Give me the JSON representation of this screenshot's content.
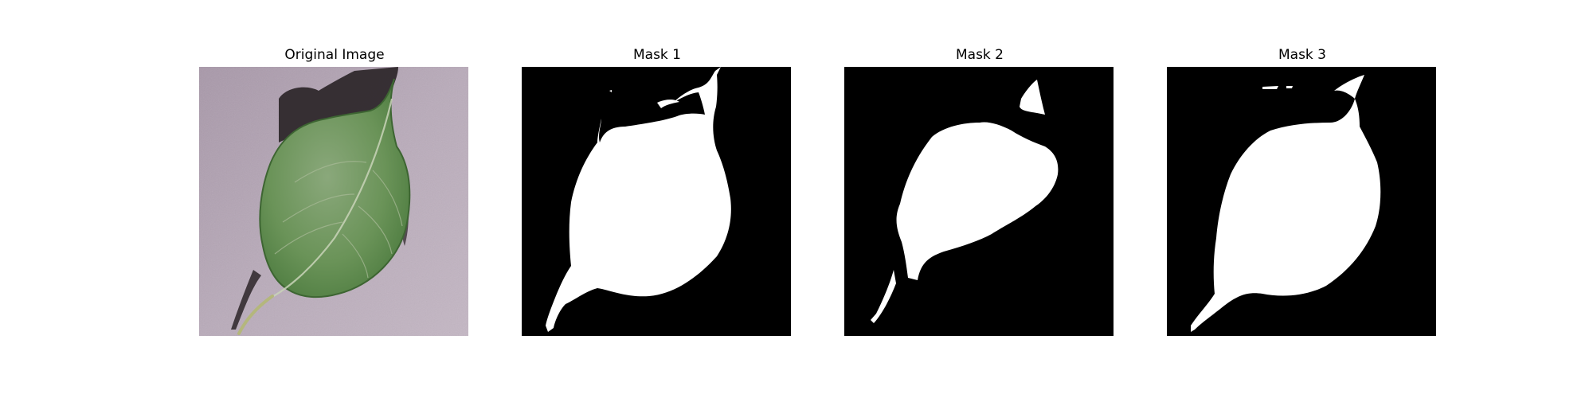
{
  "figure": {
    "panels": [
      {
        "title": "Original Image"
      },
      {
        "title": "Mask 1"
      },
      {
        "title": "Mask 2"
      },
      {
        "title": "Mask 3"
      }
    ]
  },
  "colors": {
    "background": "#ffffff",
    "mask_background": "#000000",
    "mask_foreground": "#ffffff",
    "surface": "#b7a9b8",
    "leaf": "#5f8a4c",
    "shadow": "#2b2528"
  }
}
